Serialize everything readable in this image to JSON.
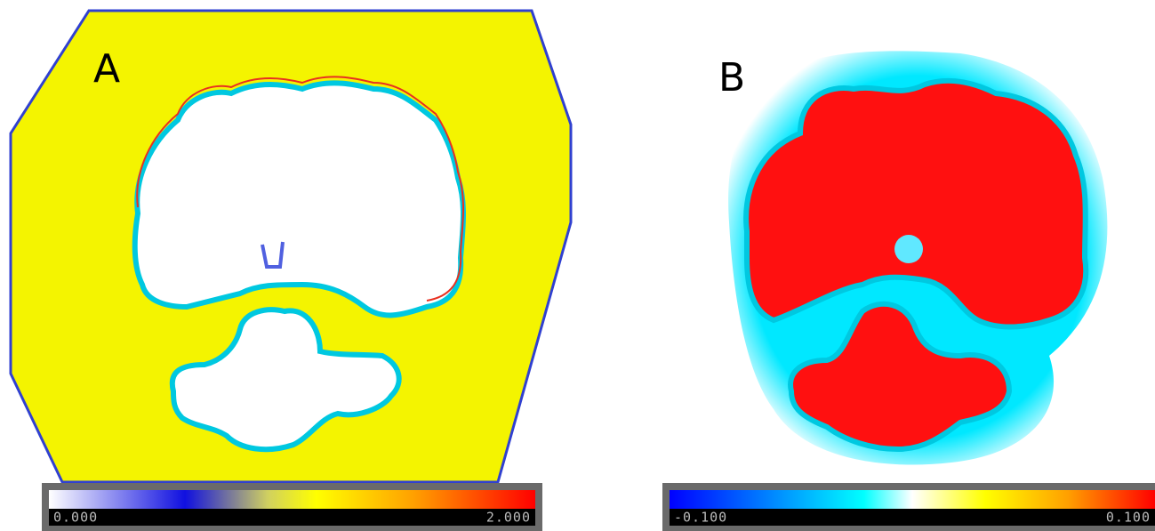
{
  "panels": [
    {
      "label": "A",
      "colorbar": {
        "min_label": "0.000",
        "max_label": "2.000"
      }
    },
    {
      "label": "B",
      "colorbar": {
        "min_label": "-0.100",
        "max_label": "0.100"
      }
    }
  ]
}
